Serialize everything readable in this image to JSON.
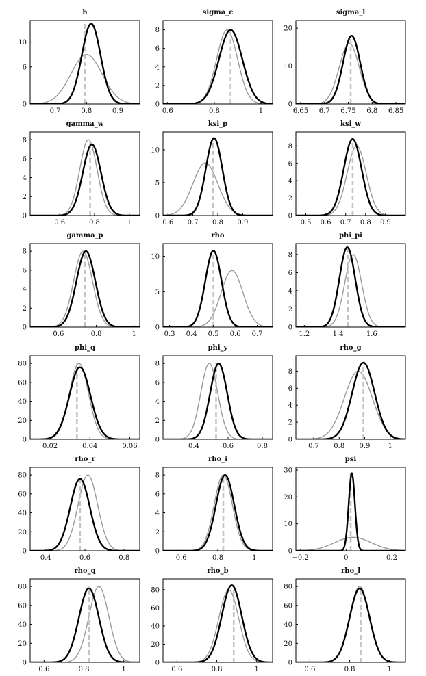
{
  "chart_data": [
    {
      "type": "line",
      "title": "h",
      "xlim": [
        0.62,
        0.97
      ],
      "ylim": [
        0,
        13.5
      ],
      "xticks": [
        0.7,
        0.8,
        0.9
      ],
      "yticks": [
        0,
        6,
        10
      ],
      "prior": {
        "mean": 0.8,
        "sd": 0.05,
        "peak": 8
      },
      "posterior": {
        "mean": 0.815,
        "sd": 0.03,
        "peak": 13
      },
      "mode_line": 0.795
    },
    {
      "type": "line",
      "title": "sigma_c",
      "xlim": [
        0.58,
        1.05
      ],
      "ylim": [
        0,
        9
      ],
      "xticks": [
        0.6,
        0.8,
        1
      ],
      "yticks": [
        0,
        2,
        4,
        6,
        8
      ],
      "prior": {
        "mean": 0.855,
        "sd": 0.045,
        "peak": 8
      },
      "posterior": {
        "mean": 0.87,
        "sd": 0.05,
        "peak": 8
      },
      "mode_line": 0.87
    },
    {
      "type": "line",
      "title": "sigma_l",
      "xlim": [
        6.64,
        6.87
      ],
      "ylim": [
        0,
        22
      ],
      "xticks": [
        6.65,
        6.7,
        6.75,
        6.8,
        6.85
      ],
      "yticks": [
        0,
        10,
        20
      ],
      "prior": {
        "mean": 6.752,
        "sd": 0.021,
        "peak": 16
      },
      "posterior": {
        "mean": 6.757,
        "sd": 0.018,
        "peak": 18
      },
      "mode_line": 6.755
    },
    {
      "type": "line",
      "title": "gamma_w",
      "xlim": [
        0.43,
        1.06
      ],
      "ylim": [
        0,
        8.8
      ],
      "xticks": [
        0.6,
        0.8,
        1
      ],
      "yticks": [
        0,
        2,
        4,
        6,
        8
      ],
      "prior": {
        "mean": 0.765,
        "sd": 0.05,
        "peak": 8
      },
      "posterior": {
        "mean": 0.785,
        "sd": 0.052,
        "peak": 7.5
      },
      "mode_line": 0.775
    },
    {
      "type": "line",
      "title": "ksi_p",
      "xlim": [
        0.58,
        1.02
      ],
      "ylim": [
        0,
        12.7
      ],
      "xticks": [
        0.6,
        0.7,
        0.8,
        0.9
      ],
      "yticks": [
        0,
        5,
        10
      ],
      "prior": {
        "mean": 0.75,
        "sd": 0.05,
        "peak": 8
      },
      "posterior": {
        "mean": 0.785,
        "sd": 0.033,
        "peak": 11.8
      },
      "mode_line": 0.78
    },
    {
      "type": "line",
      "title": "ksi_w",
      "xlim": [
        0.45,
        1.0
      ],
      "ylim": [
        0,
        9.6
      ],
      "xticks": [
        0.5,
        0.6,
        0.7,
        0.8,
        0.9
      ],
      "yticks": [
        0,
        2,
        4,
        6,
        8
      ],
      "prior": {
        "mean": 0.755,
        "sd": 0.048,
        "peak": 8
      },
      "posterior": {
        "mean": 0.735,
        "sd": 0.045,
        "peak": 8.8
      },
      "mode_line": 0.735
    },
    {
      "type": "line",
      "title": "gamma_p",
      "xlim": [
        0.45,
        1.03
      ],
      "ylim": [
        0,
        8.8
      ],
      "xticks": [
        0.6,
        0.8,
        1
      ],
      "yticks": [
        0,
        2,
        4,
        6,
        8
      ],
      "prior": {
        "mean": 0.73,
        "sd": 0.05,
        "peak": 8
      },
      "posterior": {
        "mean": 0.745,
        "sd": 0.05,
        "peak": 8
      },
      "mode_line": 0.74
    },
    {
      "type": "line",
      "title": "rho",
      "xlim": [
        0.27,
        0.77
      ],
      "ylim": [
        0,
        11.8
      ],
      "xticks": [
        0.3,
        0.4,
        0.5,
        0.6,
        0.7
      ],
      "yticks": [
        0,
        5,
        10
      ],
      "prior": {
        "mean": 0.585,
        "sd": 0.05,
        "peak": 8
      },
      "posterior": {
        "mean": 0.5,
        "sd": 0.037,
        "peak": 10.8
      },
      "mode_line": 0.5
    },
    {
      "type": "line",
      "title": "phi_pi",
      "xlim": [
        1.15,
        1.8
      ],
      "ylim": [
        0,
        9.2
      ],
      "xticks": [
        1.2,
        1.4,
        1.6
      ],
      "yticks": [
        0,
        2,
        4,
        6,
        8
      ],
      "prior": {
        "mean": 1.49,
        "sd": 0.05,
        "peak": 8
      },
      "posterior": {
        "mean": 1.455,
        "sd": 0.047,
        "peak": 8.8
      },
      "mode_line": 1.46
    },
    {
      "type": "line",
      "title": "phi_q",
      "xlim": [
        0.01,
        0.065
      ],
      "ylim": [
        0,
        88
      ],
      "xticks": [
        0.02,
        0.04,
        0.06
      ],
      "yticks": [
        0,
        20,
        40,
        60,
        80
      ],
      "prior": {
        "mean": 0.0345,
        "sd": 0.0048,
        "peak": 80
      },
      "posterior": {
        "mean": 0.035,
        "sd": 0.0053,
        "peak": 76
      },
      "mode_line": 0.0335
    },
    {
      "type": "line",
      "title": "phi_y",
      "xlim": [
        0.22,
        0.86
      ],
      "ylim": [
        0,
        8.8
      ],
      "xticks": [
        0.4,
        0.6,
        0.8
      ],
      "yticks": [
        0,
        2,
        4,
        6,
        8
      ],
      "prior": {
        "mean": 0.49,
        "sd": 0.05,
        "peak": 8
      },
      "posterior": {
        "mean": 0.545,
        "sd": 0.05,
        "peak": 8
      },
      "mode_line": 0.53
    },
    {
      "type": "line",
      "title": "rho_g",
      "xlim": [
        0.63,
        1.06
      ],
      "ylim": [
        0,
        9.8
      ],
      "xticks": [
        0.7,
        0.8,
        0.9,
        1
      ],
      "yticks": [
        0,
        2,
        4,
        6,
        8
      ],
      "prior": {
        "mean": 0.875,
        "sd": 0.055,
        "peak": 8
      },
      "posterior": {
        "mean": 0.895,
        "sd": 0.044,
        "peak": 9
      },
      "mode_line": 0.895
    },
    {
      "type": "line",
      "title": "rho_r",
      "xlim": [
        0.32,
        0.88
      ],
      "ylim": [
        0,
        88
      ],
      "xticks": [
        0.4,
        0.6,
        0.8
      ],
      "yticks": [
        0,
        20,
        40,
        60,
        80
      ],
      "prior": {
        "mean": 0.615,
        "sd": 0.05,
        "peak": 80
      },
      "posterior": {
        "mean": 0.575,
        "sd": 0.05,
        "peak": 76
      },
      "mode_line": 0.575
    },
    {
      "type": "line",
      "title": "rho_i",
      "xlim": [
        0.5,
        1.1
      ],
      "ylim": [
        0,
        8.8
      ],
      "xticks": [
        0.6,
        0.8,
        1
      ],
      "yticks": [
        0,
        2,
        4,
        6,
        8
      ],
      "prior": {
        "mean": 0.83,
        "sd": 0.05,
        "peak": 8
      },
      "posterior": {
        "mean": 0.84,
        "sd": 0.05,
        "peak": 8
      },
      "mode_line": 0.83
    },
    {
      "type": "line",
      "title": "psi",
      "xlim": [
        -0.22,
        0.26
      ],
      "ylim": [
        0,
        31
      ],
      "xticks": [
        -0.2,
        0,
        0.2
      ],
      "yticks": [
        0,
        10,
        20,
        30
      ],
      "prior": {
        "mean": 0.03,
        "sd": 0.08,
        "peak": 5
      },
      "posterior": {
        "mean": 0.025,
        "sd": 0.0135,
        "peak": 29
      },
      "mode_line": 0.02
    },
    {
      "type": "line",
      "title": "rho_q",
      "xlim": [
        0.53,
        1.08
      ],
      "ylim": [
        0,
        88
      ],
      "xticks": [
        0.6,
        0.8,
        1
      ],
      "yticks": [
        0,
        20,
        40,
        60,
        80
      ],
      "prior": {
        "mean": 0.875,
        "sd": 0.05,
        "peak": 80
      },
      "posterior": {
        "mean": 0.825,
        "sd": 0.05,
        "peak": 78
      },
      "mode_line": 0.825
    },
    {
      "type": "line",
      "title": "rho_b",
      "xlim": [
        0.53,
        1.08
      ],
      "ylim": [
        0,
        92
      ],
      "xticks": [
        0.6,
        0.8,
        1
      ],
      "yticks": [
        0,
        20,
        40,
        60,
        80
      ],
      "prior": {
        "mean": 0.86,
        "sd": 0.05,
        "peak": 80
      },
      "posterior": {
        "mean": 0.875,
        "sd": 0.05,
        "peak": 85
      },
      "mode_line": 0.885
    },
    {
      "type": "line",
      "title": "rho_l",
      "xlim": [
        0.53,
        1.08
      ],
      "ylim": [
        0,
        88
      ],
      "xticks": [
        0.6,
        0.8,
        1
      ],
      "yticks": [
        0,
        20,
        40,
        60,
        80
      ],
      "prior": {
        "mean": 0.85,
        "sd": 0.05,
        "peak": 80
      },
      "posterior": {
        "mean": 0.85,
        "sd": 0.05,
        "peak": 78
      },
      "mode_line": 0.855
    }
  ],
  "colors": {
    "prior": "#9a9a9a",
    "posterior": "#000000",
    "mode_line": "#c4c4c4"
  }
}
